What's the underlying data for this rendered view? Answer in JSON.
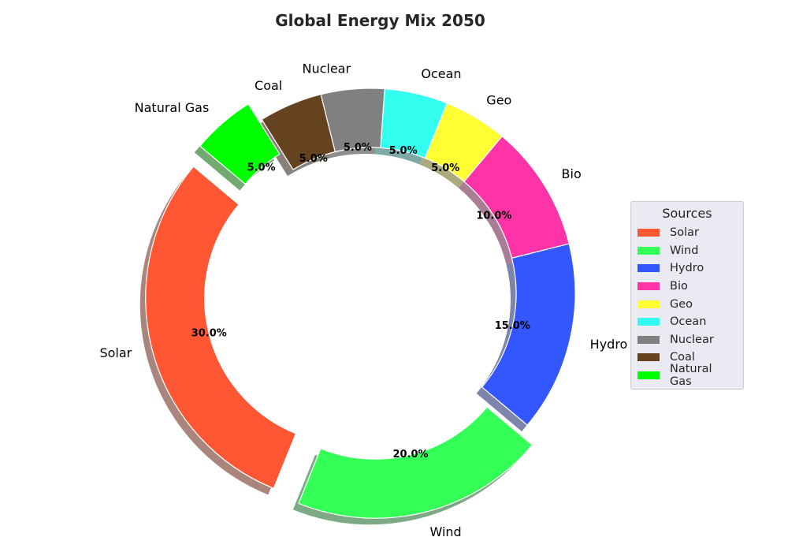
{
  "chart_data": {
    "type": "pie",
    "donut": true,
    "title": "Global Energy Mix 2050",
    "categories": [
      "Solar",
      "Wind",
      "Hydro",
      "Bio",
      "Geo",
      "Ocean",
      "Nuclear",
      "Coal",
      "Natural Gas"
    ],
    "values": [
      30,
      20,
      15,
      10,
      5,
      5,
      5,
      5,
      5
    ],
    "percent_labels": [
      "30.0%",
      "20.0%",
      "15.0%",
      "10.0%",
      "5.0%",
      "5.0%",
      "5.0%",
      "5.0%",
      "5.0%"
    ],
    "colors": [
      "#ff5733",
      "#33ff57",
      "#3357ff",
      "#ff33a8",
      "#ffff33",
      "#33fff0",
      "#808080",
      "#654321",
      "#00ff00"
    ],
    "exploded": [
      "Solar",
      "Wind",
      "Natural Gas"
    ],
    "shadow": true,
    "legend": {
      "title": "Sources",
      "placement": "center-right"
    }
  }
}
